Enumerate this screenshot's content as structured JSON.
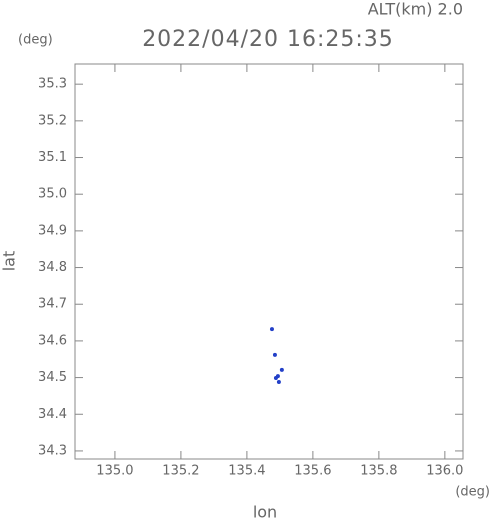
{
  "chart_data": {
    "type": "scatter",
    "title": "2022/04/20 16:25:35",
    "annotation": "ALT(km) 2.0",
    "y_unit": "(deg)",
    "x_unit": "(deg)",
    "xlabel": "lon",
    "ylabel": "lat",
    "x": [
      135.476,
      135.485,
      135.506,
      135.494,
      135.497,
      135.488
    ],
    "y": [
      34.632,
      34.562,
      34.521,
      34.504,
      34.488,
      34.499
    ],
    "color": "#2340c8",
    "xlim": [
      134.879,
      136.055
    ],
    "ylim": [
      34.278,
      35.355
    ],
    "xticks": [
      {
        "value": 135.0,
        "label": "135.0"
      },
      135.2,
      135.4,
      135.6,
      135.8,
      {
        "value": 136.0,
        "label": "136.0"
      }
    ],
    "yticks": [
      34.3,
      34.4,
      34.5,
      34.6,
      34.7,
      34.8,
      34.9,
      {
        "value": 35.0,
        "label": "35.0"
      },
      35.1,
      35.2,
      35.3
    ],
    "grid": false
  }
}
